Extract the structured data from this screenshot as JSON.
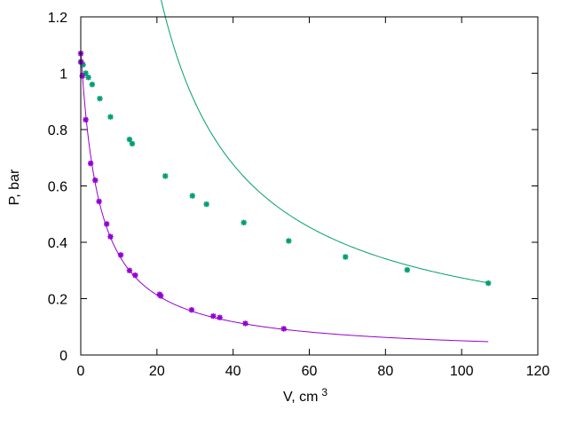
{
  "chart_data": {
    "type": "scatter",
    "xlabel": "V, cm",
    "xlabel_superscript": "3",
    "ylabel": "P, bar",
    "xlim": [
      0,
      120
    ],
    "ylim": [
      0,
      1.2
    ],
    "x_ticks": [
      "0",
      "20",
      "40",
      "60",
      "80",
      "100",
      "120"
    ],
    "y_ticks": [
      "0",
      "0.2",
      "0.4",
      "0.6",
      "0.8",
      "1",
      "1.2"
    ],
    "grid": false,
    "legend": "none",
    "series": [
      {
        "color": "#009e73",
        "marker": "star",
        "fit_curve": {
          "model": "P = a / (V + b)",
          "a": 27.6,
          "b": 0.8,
          "x_range": [
            0,
            107
          ]
        },
        "points": [
          [
            0.0,
            1.04
          ],
          [
            0.6,
            1.03
          ],
          [
            1.3,
            1.0
          ],
          [
            2.0,
            0.985
          ],
          [
            3.0,
            0.96
          ],
          [
            5.0,
            0.91
          ],
          [
            7.8,
            0.845
          ],
          [
            12.8,
            0.765
          ],
          [
            13.5,
            0.75
          ],
          [
            22.2,
            0.635
          ],
          [
            29.3,
            0.565
          ],
          [
            33.0,
            0.535
          ],
          [
            42.8,
            0.47
          ],
          [
            54.6,
            0.405
          ],
          [
            69.5,
            0.348
          ],
          [
            85.7,
            0.302
          ],
          [
            107.0,
            0.255
          ]
        ]
      },
      {
        "color": "#9400d3",
        "marker": "star",
        "fit_curve": {
          "model": "P = a / (V + b)",
          "a": 5.3,
          "b": 4.9,
          "x_range": [
            0,
            107
          ]
        },
        "points": [
          [
            0.0,
            1.07
          ],
          [
            0.1,
            1.04
          ],
          [
            0.4,
            0.99
          ],
          [
            1.3,
            0.835
          ],
          [
            2.6,
            0.68
          ],
          [
            3.8,
            0.62
          ],
          [
            4.8,
            0.545
          ],
          [
            6.8,
            0.465
          ],
          [
            7.8,
            0.42
          ],
          [
            10.5,
            0.355
          ],
          [
            12.8,
            0.3
          ],
          [
            14.3,
            0.283
          ],
          [
            20.7,
            0.215
          ],
          [
            21.0,
            0.21
          ],
          [
            29.1,
            0.16
          ],
          [
            34.8,
            0.138
          ],
          [
            36.5,
            0.133
          ],
          [
            43.2,
            0.112
          ],
          [
            53.3,
            0.093
          ]
        ]
      }
    ]
  }
}
